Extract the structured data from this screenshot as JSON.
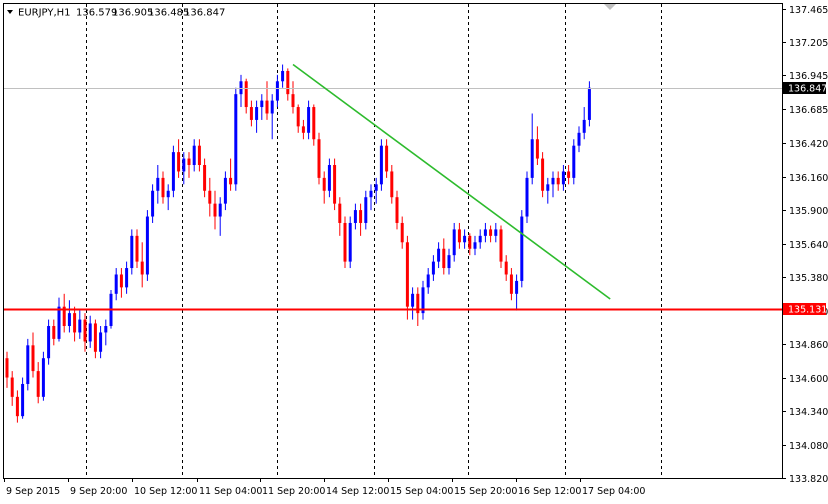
{
  "header": {
    "symbol": "EURJPY,H1",
    "open": "136.579",
    "high": "136.905",
    "low": "136.485",
    "close": "136.847"
  },
  "colors": {
    "bull": "#0000ff",
    "bear": "#ff0000",
    "trendline": "#2dbb2d",
    "support": "#ff0000",
    "bid_line": "#c0c0c0",
    "grid": "#000000"
  },
  "chart_data": {
    "type": "candlestick",
    "ylim": [
      133.82,
      137.5
    ],
    "y_ticks": [
      "137.465",
      "137.205",
      "136.945",
      "136.685",
      "136.420",
      "136.160",
      "135.900",
      "135.640",
      "135.380",
      "135.120",
      "134.860",
      "134.600",
      "134.340",
      "134.080",
      "133.820"
    ],
    "x_ticks": [
      "9 Sep 2015",
      "9 Sep 20:00",
      "10 Sep 12:00",
      "11 Sep 04:00",
      "11 Sep 20:00",
      "14 Sep 12:00",
      "15 Sep 04:00",
      "15 Sep 20:00",
      "16 Sep 12:00",
      "17 Sep 04:00"
    ],
    "bid_price": "136.847",
    "support_price": "135.131",
    "trendline": {
      "from": {
        "bar": 55,
        "price": 137.03
      },
      "to": {
        "bar": 116,
        "price": 135.21
      }
    },
    "candles": [
      [
        134.75,
        134.8,
        134.52,
        134.6
      ],
      [
        134.6,
        134.65,
        134.38,
        134.45
      ],
      [
        134.45,
        134.5,
        134.25,
        134.3
      ],
      [
        134.3,
        134.6,
        134.28,
        134.55
      ],
      [
        134.55,
        134.9,
        134.5,
        134.85
      ],
      [
        134.85,
        134.95,
        134.6,
        134.65
      ],
      [
        134.65,
        134.72,
        134.4,
        134.45
      ],
      [
        134.45,
        134.8,
        134.42,
        134.75
      ],
      [
        134.75,
        135.05,
        134.7,
        135.0
      ],
      [
        135.0,
        135.05,
        134.85,
        134.9
      ],
      [
        134.9,
        135.22,
        134.88,
        135.15
      ],
      [
        135.15,
        135.25,
        134.95,
        135.0
      ],
      [
        135.0,
        135.2,
        134.95,
        135.1
      ],
      [
        135.1,
        135.15,
        134.88,
        134.95
      ],
      [
        134.95,
        135.12,
        134.9,
        135.05
      ],
      [
        135.05,
        135.1,
        134.8,
        134.88
      ],
      [
        134.88,
        135.08,
        134.83,
        135.02
      ],
      [
        135.02,
        135.05,
        134.75,
        134.8
      ],
      [
        134.8,
        135.0,
        134.75,
        134.95
      ],
      [
        134.95,
        135.05,
        134.85,
        135.0
      ],
      [
        135.0,
        135.28,
        134.98,
        135.25
      ],
      [
        135.25,
        135.45,
        135.2,
        135.4
      ],
      [
        135.4,
        135.45,
        135.22,
        135.3
      ],
      [
        135.3,
        135.5,
        135.25,
        135.45
      ],
      [
        135.45,
        135.75,
        135.4,
        135.7
      ],
      [
        135.7,
        135.75,
        135.45,
        135.5
      ],
      [
        135.5,
        135.65,
        135.3,
        135.4
      ],
      [
        135.4,
        135.9,
        135.35,
        135.85
      ],
      [
        135.85,
        136.1,
        135.8,
        136.05
      ],
      [
        136.05,
        136.25,
        135.95,
        136.15
      ],
      [
        136.15,
        136.2,
        135.95,
        136.0
      ],
      [
        136.0,
        136.1,
        135.9,
        136.05
      ],
      [
        136.05,
        136.4,
        136.0,
        136.35
      ],
      [
        136.35,
        136.45,
        136.15,
        136.2
      ],
      [
        136.2,
        136.35,
        136.1,
        136.3
      ],
      [
        136.3,
        136.35,
        136.15,
        136.25
      ],
      [
        136.25,
        136.45,
        136.2,
        136.4
      ],
      [
        136.4,
        136.45,
        136.2,
        136.25
      ],
      [
        136.25,
        136.3,
        136.0,
        136.05
      ],
      [
        136.05,
        136.15,
        135.85,
        135.95
      ],
      [
        135.95,
        136.05,
        135.75,
        135.85
      ],
      [
        135.85,
        136.0,
        135.7,
        135.95
      ],
      [
        135.95,
        136.2,
        135.9,
        136.15
      ],
      [
        136.15,
        136.3,
        136.05,
        136.1
      ],
      [
        136.1,
        136.85,
        136.05,
        136.8
      ],
      [
        136.8,
        136.95,
        136.7,
        136.9
      ],
      [
        136.9,
        136.92,
        136.65,
        136.7
      ],
      [
        136.7,
        136.75,
        136.55,
        136.6
      ],
      [
        136.6,
        136.75,
        136.5,
        136.7
      ],
      [
        136.7,
        136.8,
        136.6,
        136.75
      ],
      [
        136.75,
        136.9,
        136.6,
        136.65
      ],
      [
        136.65,
        136.8,
        136.45,
        136.75
      ],
      [
        136.75,
        136.95,
        136.7,
        136.9
      ],
      [
        136.9,
        137.03,
        136.85,
        136.98
      ],
      [
        136.98,
        137.0,
        136.75,
        136.8
      ],
      [
        136.8,
        136.9,
        136.65,
        136.7
      ],
      [
        136.7,
        136.72,
        136.5,
        136.55
      ],
      [
        136.55,
        136.6,
        136.45,
        136.5
      ],
      [
        136.5,
        136.75,
        136.45,
        136.7
      ],
      [
        136.7,
        136.72,
        136.4,
        136.45
      ],
      [
        136.45,
        136.5,
        136.1,
        136.15
      ],
      [
        136.15,
        136.2,
        135.95,
        136.05
      ],
      [
        136.05,
        136.3,
        136.0,
        136.25
      ],
      [
        136.25,
        136.3,
        135.9,
        135.95
      ],
      [
        135.95,
        136.0,
        135.7,
        135.8
      ],
      [
        135.8,
        135.85,
        135.45,
        135.5
      ],
      [
        135.5,
        135.85,
        135.45,
        135.8
      ],
      [
        135.8,
        135.95,
        135.75,
        135.9
      ],
      [
        135.9,
        135.95,
        135.7,
        135.8
      ],
      [
        135.8,
        136.05,
        135.75,
        136.0
      ],
      [
        136.0,
        136.1,
        135.9,
        136.05
      ],
      [
        136.05,
        136.15,
        135.95,
        136.1
      ],
      [
        136.1,
        136.45,
        136.05,
        136.4
      ],
      [
        136.4,
        136.45,
        136.15,
        136.2
      ],
      [
        136.2,
        136.25,
        135.95,
        136.0
      ],
      [
        136.0,
        136.05,
        135.75,
        135.8
      ],
      [
        135.8,
        135.85,
        135.6,
        135.65
      ],
      [
        135.65,
        135.7,
        135.05,
        135.15
      ],
      [
        135.15,
        135.3,
        135.05,
        135.25
      ],
      [
        135.25,
        135.3,
        135.0,
        135.1
      ],
      [
        135.1,
        135.35,
        135.05,
        135.3
      ],
      [
        135.3,
        135.45,
        135.25,
        135.4
      ],
      [
        135.4,
        135.55,
        135.35,
        135.5
      ],
      [
        135.5,
        135.65,
        135.45,
        135.6
      ],
      [
        135.6,
        135.68,
        135.4,
        135.45
      ],
      [
        135.45,
        135.6,
        135.4,
        135.55
      ],
      [
        135.55,
        135.8,
        135.5,
        135.75
      ],
      [
        135.75,
        135.8,
        135.6,
        135.65
      ],
      [
        135.65,
        135.75,
        135.6,
        135.7
      ],
      [
        135.7,
        135.72,
        135.55,
        135.6
      ],
      [
        135.6,
        135.7,
        135.55,
        135.65
      ],
      [
        135.65,
        135.75,
        135.6,
        135.7
      ],
      [
        135.7,
        135.8,
        135.65,
        135.75
      ],
      [
        135.75,
        135.78,
        135.65,
        135.7
      ],
      [
        135.7,
        135.8,
        135.65,
        135.75
      ],
      [
        135.75,
        135.78,
        135.45,
        135.5
      ],
      [
        135.5,
        135.55,
        135.35,
        135.4
      ],
      [
        135.4,
        135.45,
        135.2,
        135.25
      ],
      [
        135.25,
        135.4,
        135.12,
        135.35
      ],
      [
        135.35,
        135.9,
        135.3,
        135.85
      ],
      [
        135.85,
        136.2,
        135.8,
        136.15
      ],
      [
        136.15,
        136.65,
        136.1,
        136.45
      ],
      [
        136.45,
        136.55,
        136.25,
        136.3
      ],
      [
        136.3,
        136.35,
        136.0,
        136.05
      ],
      [
        136.05,
        136.15,
        135.95,
        136.1
      ],
      [
        136.1,
        136.2,
        136.0,
        136.15
      ],
      [
        136.15,
        136.2,
        136.05,
        136.1
      ],
      [
        136.1,
        136.25,
        136.05,
        136.2
      ],
      [
        136.2,
        136.25,
        136.1,
        136.15
      ],
      [
        136.15,
        136.45,
        136.1,
        136.4
      ],
      [
        136.4,
        136.55,
        136.35,
        136.5
      ],
      [
        136.5,
        136.7,
        136.45,
        136.6
      ],
      [
        136.6,
        136.9,
        136.55,
        136.85
      ]
    ]
  }
}
